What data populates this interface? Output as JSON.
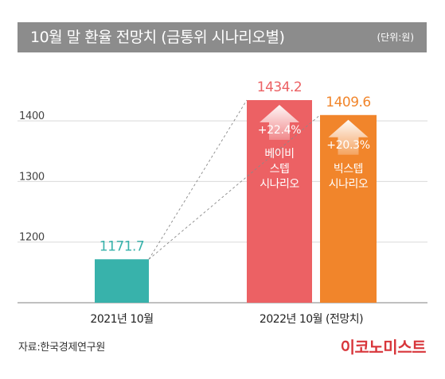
{
  "header": {
    "title": "10월 말 환율 전망치 (금통위 시나리오별)",
    "unit": "(단위:원)"
  },
  "footer": {
    "source": "자료:한국경제연구원",
    "brand": "이코노미스트"
  },
  "colors": {
    "title_bg": "#8c8c8c",
    "teal": "#38b2ab",
    "red": "#ec6164",
    "orange": "#f1852b",
    "brand": "#d8363b"
  },
  "chart_data": {
    "type": "bar",
    "title": "10월 말 환율 전망치 (금통위 시나리오별)",
    "unit": "(단위:원)",
    "ylim": [
      1100,
      1450
    ],
    "yticks": [
      1200,
      1300,
      1400
    ],
    "grid": true,
    "groups": [
      "2021년 10월",
      "2022년 10월 (전망치)"
    ],
    "bars": [
      {
        "group": "2021년 10월",
        "value": 1171.7,
        "label": "1171.7",
        "color": "#38b2ab"
      },
      {
        "group": "2022년 10월 (전망치)",
        "value": 1434.2,
        "label": "1434.2",
        "color": "#ec6164",
        "change": "+22.4%",
        "scenario": [
          "베이비",
          "스텝",
          "시나리오"
        ]
      },
      {
        "group": "2022년 10월 (전망치)",
        "value": 1409.6,
        "label": "1409.6",
        "color": "#f1852b",
        "change": "+20.3%",
        "scenario": [
          "빅스텝",
          "시나리오"
        ]
      }
    ]
  }
}
